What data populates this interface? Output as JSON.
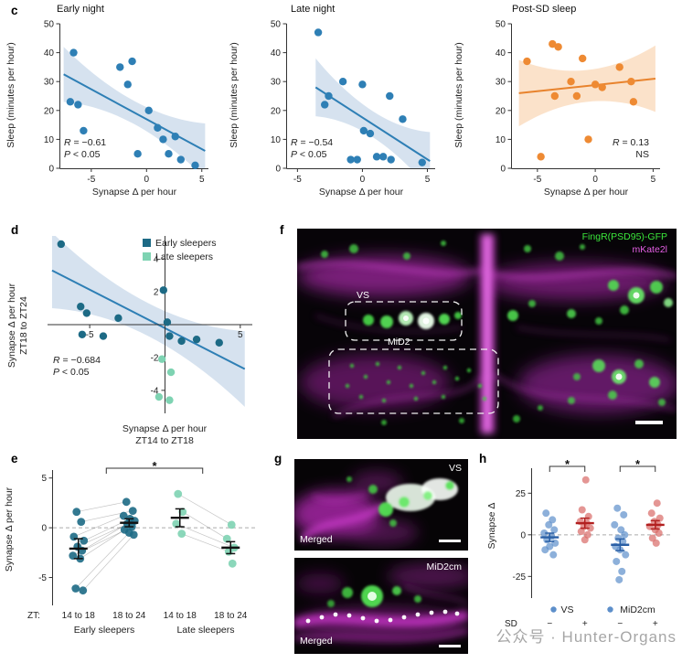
{
  "watermark": "公众号 · Hunter-Organs",
  "panel_labels": {
    "c": "c",
    "d": "d",
    "e": "e",
    "f": "f",
    "g": "g",
    "h": "h"
  },
  "panel_f": {
    "fingr": "FingR(PSD95)-GFP",
    "mkate": "mKate2l",
    "vs": "VS",
    "mid2": "MiD2"
  },
  "panel_g": {
    "vs": "VS",
    "mid2cm": "MiD2cm",
    "merged1": "Merged",
    "merged2": "Merged"
  },
  "chart_data": [
    {
      "id": "c1",
      "type": "scatter",
      "title": "Early night",
      "xlabel": "Synapse Δ per hour",
      "ylabel": "Sleep (minutes per hour)",
      "xlim": [
        -7.8,
        5.6
      ],
      "ylim": [
        0,
        50
      ],
      "xticks": [
        -5,
        0,
        5
      ],
      "yticks": [
        0,
        10,
        20,
        30,
        40,
        50
      ],
      "margin": {
        "l": 32,
        "r": 6,
        "t": 8,
        "b": 26
      },
      "point_color": "#2e7fb5",
      "r": 4.2,
      "points": [
        [
          -6.6,
          40
        ],
        [
          -6.9,
          23
        ],
        [
          -6.2,
          22
        ],
        [
          -5.7,
          13
        ],
        [
          -2.4,
          35
        ],
        [
          -1.3,
          37
        ],
        [
          -1.7,
          29
        ],
        [
          -0.8,
          5
        ],
        [
          0.2,
          20
        ],
        [
          1,
          14
        ],
        [
          1.5,
          10
        ],
        [
          2,
          5
        ],
        [
          2.6,
          11
        ],
        [
          3.1,
          3
        ],
        [
          4.4,
          1
        ]
      ],
      "fit": {
        "pts": [
          -7.5,
          32.5,
          5.3,
          6
        ],
        "color": "#2e7fb5"
      },
      "band": {
        "mid": 4,
        "end": 9.5,
        "color": "rgba(119,158,203,0.30)"
      },
      "stats": {
        "r_sym": "R",
        "r_val": " = −0.61",
        "p_sym": "P",
        "p_val": " < 0.05"
      }
    },
    {
      "id": "c2",
      "type": "scatter",
      "title": "Late night",
      "xlabel": "Synapse Δ per hour",
      "ylabel": "Sleep (minutes per hour)",
      "xlim": [
        -5.8,
        5.6
      ],
      "ylim": [
        0,
        50
      ],
      "xticks": [
        -5,
        0,
        5
      ],
      "yticks": [
        0,
        10,
        20,
        30,
        40,
        50
      ],
      "margin": {
        "l": 32,
        "r": 6,
        "t": 8,
        "b": 26
      },
      "point_color": "#2e7fb5",
      "r": 4.2,
      "points": [
        [
          -3.4,
          47
        ],
        [
          -2.9,
          22
        ],
        [
          -2.6,
          25
        ],
        [
          -1.5,
          30
        ],
        [
          -0.9,
          3
        ],
        [
          -0.4,
          3
        ],
        [
          0,
          29
        ],
        [
          0.1,
          13
        ],
        [
          0.6,
          12
        ],
        [
          1.1,
          4
        ],
        [
          1.6,
          4
        ],
        [
          2.1,
          25
        ],
        [
          2.2,
          3
        ],
        [
          3.1,
          17
        ],
        [
          4.6,
          2
        ]
      ],
      "fit": {
        "pts": [
          -3.6,
          28,
          5.2,
          2.5
        ],
        "color": "#2e7fb5"
      },
      "band": {
        "mid": 4.5,
        "end": 10,
        "color": "rgba(119,158,203,0.30)"
      },
      "stats": {
        "r_sym": "R",
        "r_val": " = −0.54",
        "p_sym": "P",
        "p_val": " < 0.05"
      }
    },
    {
      "id": "c3",
      "type": "scatter",
      "title": "Post-SD sleep",
      "xlabel": "Synapse Δ per hour",
      "ylabel": "Sleep (minutes per hour)",
      "xlim": [
        -7.2,
        5.6
      ],
      "ylim": [
        0,
        50
      ],
      "xticks": [
        -5,
        0,
        5
      ],
      "yticks": [
        0,
        10,
        20,
        30,
        40,
        50
      ],
      "margin": {
        "l": 32,
        "r": 6,
        "t": 8,
        "b": 26
      },
      "point_color": "#ee8a33",
      "r": 4.2,
      "points": [
        [
          -5.9,
          37
        ],
        [
          -4.7,
          4
        ],
        [
          -3.7,
          43
        ],
        [
          -3.2,
          42
        ],
        [
          -3.5,
          25
        ],
        [
          -2.1,
          30
        ],
        [
          -1.6,
          25
        ],
        [
          -1.1,
          38
        ],
        [
          -0.6,
          10
        ],
        [
          0,
          29
        ],
        [
          0.6,
          28
        ],
        [
          2.1,
          35
        ],
        [
          3.1,
          30
        ],
        [
          3.3,
          23
        ]
      ],
      "fit": {
        "pts": [
          -6.6,
          26,
          5.2,
          31
        ],
        "color": "#e8832d"
      },
      "band": {
        "mid": 5.5,
        "end": 11.5,
        "color": "rgba(243,167,95,0.33)"
      },
      "stats": {
        "r_sym": "R",
        "r_val": " = 0.13",
        "p_sym": "",
        "p_val": "NS"
      }
    },
    {
      "id": "d",
      "type": "scatter",
      "cross": true,
      "xlabel_lines": [
        "Synapse Δ per hour",
        "ZT14 to ZT18"
      ],
      "ylabel_lines": [
        "Synapse Δ per hour",
        "ZT18 to ZT24"
      ],
      "xlim": [
        -7.8,
        5.8
      ],
      "ylim": [
        -5.4,
        5.4
      ],
      "xticks": [
        -5,
        5
      ],
      "yticks": [
        -4,
        -2,
        2,
        4
      ],
      "margin": {
        "l": 8,
        "r": 8,
        "t": 8,
        "b": 8
      },
      "colors": {
        "early": "#1d6a85",
        "late": "#7ed3b2"
      },
      "r": 4.2,
      "points": [
        [
          -6.9,
          4.9,
          "early"
        ],
        [
          -5.6,
          1.1,
          "early"
        ],
        [
          -5.2,
          0.7,
          "early"
        ],
        [
          -5.5,
          -0.6,
          "early"
        ],
        [
          -4.1,
          -0.7,
          "early"
        ],
        [
          -3.1,
          0.4,
          "early"
        ],
        [
          -0.1,
          2.1,
          "early"
        ],
        [
          0.15,
          0.15,
          "early"
        ],
        [
          0.3,
          -0.7,
          "early"
        ],
        [
          1.1,
          -1,
          "early"
        ],
        [
          2.1,
          -0.9,
          "early"
        ],
        [
          3.6,
          -1.1,
          "early"
        ],
        [
          -0.2,
          -2.1,
          "late"
        ],
        [
          0.4,
          -2.9,
          "late"
        ],
        [
          -0.4,
          -4.4,
          "late"
        ],
        [
          0.3,
          -4.6,
          "late"
        ]
      ],
      "fit": {
        "pts": [
          -7.5,
          3.3,
          5.3,
          -2.7
        ],
        "color": "#2e7fb5"
      },
      "band": {
        "mid": 1,
        "end": 2.3,
        "color": "rgba(119,158,203,0.30)"
      },
      "legend": [
        {
          "label": "Early sleepers",
          "color": "#1d6a85"
        },
        {
          "label": "Late sleepers",
          "color": "#7ed3b2"
        }
      ],
      "stats": {
        "r_sym": "R",
        "r_val": " = −0.684",
        "p_sym": "P",
        "p_val": " < 0.05"
      }
    },
    {
      "id": "e",
      "type": "strip",
      "ylabel": "Synapse Δ per hour",
      "ylim": [
        -7.8,
        5.8
      ],
      "yticks": [
        -5,
        0,
        5
      ],
      "margin": {
        "l": 30,
        "r": 6,
        "t": 16,
        "b": 26
      },
      "r": 4.4,
      "alpha": 0.9,
      "zero_line": true,
      "prefix": "ZT:",
      "group_label_dy": 14,
      "cohort_labels": [
        "Early sleepers",
        "Late sleepers"
      ],
      "paired": [
        [
          0,
          1
        ],
        [
          2,
          3
        ]
      ],
      "brackets": [
        {
          "x1": 0.55,
          "x2": 2.45,
          "label": "*"
        }
      ],
      "groups": [
        {
          "label": "14 to 18",
          "color": "#1d6a85",
          "mean": -2.1,
          "err": 1,
          "points": [
            [
              -2,
              1.6
            ],
            [
              3,
              0.6
            ],
            [
              -5,
              -0.9
            ],
            [
              6,
              -1.3
            ],
            [
              -1,
              -1.9
            ],
            [
              4,
              -2.3
            ],
            [
              -6,
              -2.8
            ],
            [
              2,
              -3.1
            ],
            [
              -3,
              -6.1
            ],
            [
              5,
              -6.3
            ]
          ]
        },
        {
          "label": "18 to 24",
          "color": "#1d6a85",
          "mean": 0.5,
          "err": 0.4,
          "points": [
            [
              -3,
              2.6
            ],
            [
              4,
              1.7
            ],
            [
              -6,
              1.2
            ],
            [
              1,
              0.9
            ],
            [
              6,
              0.7
            ],
            [
              -2,
              0.4
            ],
            [
              3,
              0.1
            ],
            [
              -5,
              -0.2
            ],
            [
              0,
              -0.5
            ],
            [
              5,
              -0.7
            ]
          ]
        },
        {
          "label": "14 to 18",
          "color": "#7ed3b2",
          "mean": 1,
          "err": 0.9,
          "points": [
            [
              -2,
              3.4
            ],
            [
              3,
              1.6
            ],
            [
              -4,
              0.4
            ],
            [
              2,
              -0.6
            ]
          ]
        },
        {
          "label": "18 to 24",
          "color": "#7ed3b2",
          "mean": -2,
          "err": 0.6,
          "points": [
            [
              1,
              0.3
            ],
            [
              -4,
              -1.1
            ],
            [
              4,
              -2
            ],
            [
              -2,
              -2.4
            ],
            [
              2,
              -3.6
            ]
          ]
        }
      ]
    },
    {
      "id": "h",
      "type": "strip",
      "ylabel": "Synapse Δ",
      "ylim": [
        -38,
        40
      ],
      "yticks": [
        -25,
        0,
        25
      ],
      "margin": {
        "l": 32,
        "r": 6,
        "t": 14,
        "b": 44
      },
      "r": 4,
      "alpha": 0.7,
      "zero_line": true,
      "prefix": "SD",
      "group_label_dy": 31,
      "region_dy": 16,
      "region_dot_color": "#5d8fca",
      "region_labels": [
        {
          "label": "VS",
          "pair": [
            0,
            1
          ],
          "dot_dx": -15
        },
        {
          "label": "MiD2cm",
          "pair": [
            2,
            3
          ],
          "dot_dx": -30
        }
      ],
      "brackets": [
        {
          "x1": 0,
          "x2": 1,
          "label": "*"
        },
        {
          "x1": 2,
          "x2": 3,
          "label": "*"
        }
      ],
      "groups": [
        {
          "label": "−",
          "color": "#5d8fca",
          "bar_color": "#2a5fa5",
          "mean": -1.5,
          "err": 2.5,
          "points": [
            [
              -4,
              13
            ],
            [
              3,
              9
            ],
            [
              -1,
              6
            ],
            [
              5,
              3
            ],
            [
              -6,
              1
            ],
            [
              2,
              -1
            ],
            [
              -3,
              -3
            ],
            [
              6,
              -5
            ],
            [
              0,
              -7
            ],
            [
              -5,
              -9
            ],
            [
              4,
              -12
            ]
          ]
        },
        {
          "label": "+",
          "color": "#d96a66",
          "bar_color": "#b22020",
          "mean": 7,
          "err": 3,
          "points": [
            [
              1,
              33
            ],
            [
              -3,
              15
            ],
            [
              4,
              11
            ],
            [
              -5,
              8
            ],
            [
              2,
              7
            ],
            [
              -1,
              5
            ],
            [
              6,
              4
            ],
            [
              -4,
              2
            ],
            [
              3,
              0
            ],
            [
              0,
              -3
            ]
          ]
        },
        {
          "label": "−",
          "color": "#5d8fca",
          "bar_color": "#2a5fa5",
          "mean": -6,
          "err": 3.5,
          "points": [
            [
              -3,
              16
            ],
            [
              4,
              12
            ],
            [
              -6,
              6
            ],
            [
              1,
              3
            ],
            [
              5,
              0
            ],
            [
              -2,
              -2
            ],
            [
              3,
              -4
            ],
            [
              -5,
              -7
            ],
            [
              0,
              -9
            ],
            [
              6,
              -12
            ],
            [
              -4,
              -16
            ],
            [
              2,
              -22
            ],
            [
              -1,
              -27
            ]
          ]
        },
        {
          "label": "+",
          "color": "#d96a66",
          "bar_color": "#b22020",
          "mean": 6,
          "err": 2.5,
          "points": [
            [
              2,
              19
            ],
            [
              -4,
              13
            ],
            [
              5,
              10
            ],
            [
              -1,
              8
            ],
            [
              3,
              6
            ],
            [
              -6,
              5
            ],
            [
              0,
              3
            ],
            [
              4,
              1
            ],
            [
              -3,
              -2
            ],
            [
              1,
              -5
            ]
          ]
        }
      ]
    }
  ]
}
